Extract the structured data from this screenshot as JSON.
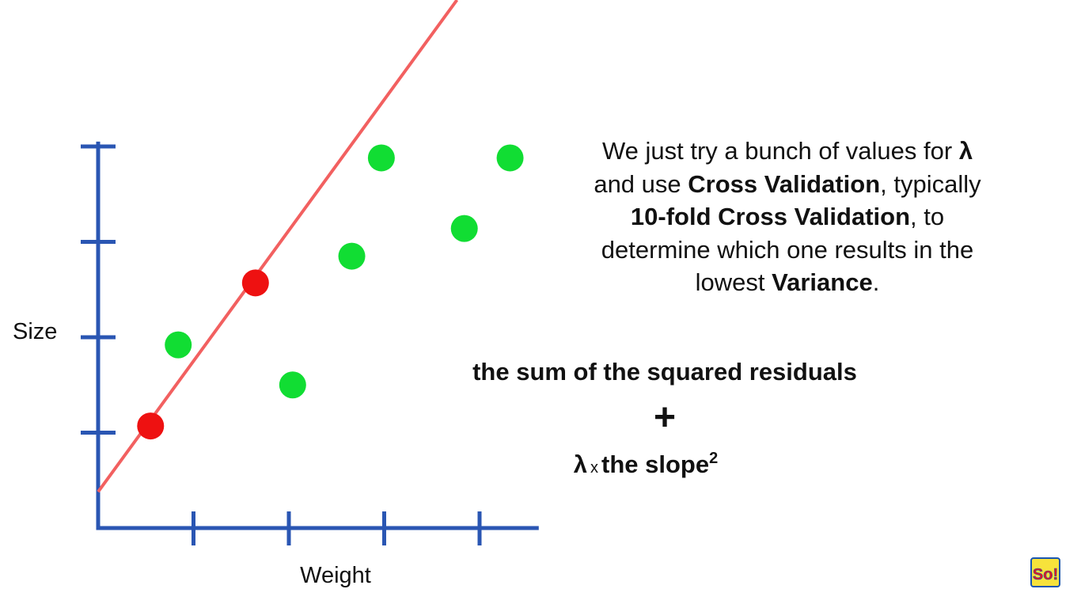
{
  "chart_data": {
    "type": "scatter",
    "xlabel": "Weight",
    "ylabel": "Size",
    "xlim": [
      0,
      4.6
    ],
    "ylim": [
      0,
      4.0
    ],
    "x_ticks": [
      1,
      2,
      3,
      4
    ],
    "y_ticks": [
      1,
      2,
      3,
      4
    ],
    "grid": false,
    "series": [
      {
        "color": "#ee1111",
        "points": [
          {
            "x": 0.55,
            "y": 1.07
          },
          {
            "x": 1.65,
            "y": 2.57
          }
        ]
      },
      {
        "color": "#11dd33",
        "points": [
          {
            "x": 0.84,
            "y": 1.92
          },
          {
            "x": 2.04,
            "y": 1.5
          },
          {
            "x": 2.66,
            "y": 2.85
          },
          {
            "x": 2.97,
            "y": 3.88
          },
          {
            "x": 3.84,
            "y": 3.14
          },
          {
            "x": 4.32,
            "y": 3.88
          }
        ]
      }
    ],
    "fit_line": {
      "color": "#f26060",
      "intercept": 0.38,
      "slope": 1.37
    }
  },
  "explanation": {
    "line1_a": "We just try a bunch of values for ",
    "line1_lambda": "λ",
    "line2_a": "and use ",
    "line2_bold": "Cross Validation",
    "line2_b": ", typically",
    "line3_bold": "10-fold Cross Validation",
    "line3_b": ", to",
    "line4": "determine which one results in the",
    "line5_a": "lowest ",
    "line5_bold": "Variance",
    "line5_b": "."
  },
  "formula": {
    "line1": "the sum of the squared residuals",
    "plus": "+",
    "lambda": "λ",
    "times": "x",
    "slope_text": "the slope",
    "exponent": "2"
  },
  "logo": {
    "text": "So!",
    "colors": {
      "red": "#e8141b",
      "yellow": "#f7e23b",
      "blue": "#1a56b0"
    }
  },
  "colors": {
    "axis": "#2a56b3",
    "text": "#111111"
  }
}
